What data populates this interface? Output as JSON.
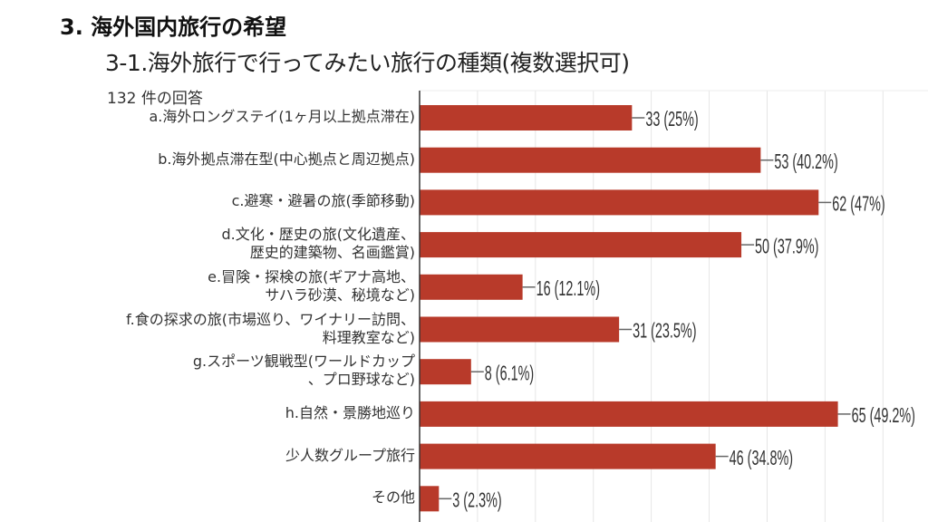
{
  "title": "3. 海外国内旅行の希望",
  "subtitle": "3-1.海外旅行で行ってみたい旅行の種類(複数選択可)",
  "responses": "132 件の回答",
  "chart_data": {
    "type": "bar",
    "orientation": "horizontal",
    "title": "3-1.海外旅行で行ってみたい旅行の種類(複数選択可)",
    "xlabel": "",
    "ylabel": "",
    "xlim": [
      0,
      79
    ],
    "grid": true,
    "bar_color": "#b83a2a",
    "categories": [
      [
        "a.海外ロングステイ(1ヶ月以上拠点滞在)"
      ],
      [
        "b.海外拠点滞在型(中心拠点と周辺拠点)"
      ],
      [
        "c.避寒・避暑の旅(季節移動)"
      ],
      [
        "d.文化・歴史の旅(文化遺産、",
        "歴史的建築物、名画鑑賞)"
      ],
      [
        "e.冒険・探検の旅(ギアナ高地、",
        "サハラ砂漠、秘境など)"
      ],
      [
        "f.食の探求の旅(市場巡り、ワイナリー訪問、",
        "料理教室など)"
      ],
      [
        "g.スポーツ観戦型(ワールドカップ",
        "、プロ野球など)"
      ],
      [
        "h.自然・景勝地巡り"
      ],
      [
        "少人数グループ旅行"
      ],
      [
        "その他"
      ]
    ],
    "values": [
      33,
      53,
      62,
      50,
      16,
      31,
      8,
      65,
      46,
      3
    ],
    "data_labels": [
      "33 (25%)",
      "53 (40.2%)",
      "62 (47%)",
      "50 (37.9%)",
      "16 (12.1%)",
      "31 (23.5%)",
      "8 (6.1%)",
      "65 (49.2%)",
      "46 (34.8%)",
      "3 (2.3%)"
    ]
  }
}
